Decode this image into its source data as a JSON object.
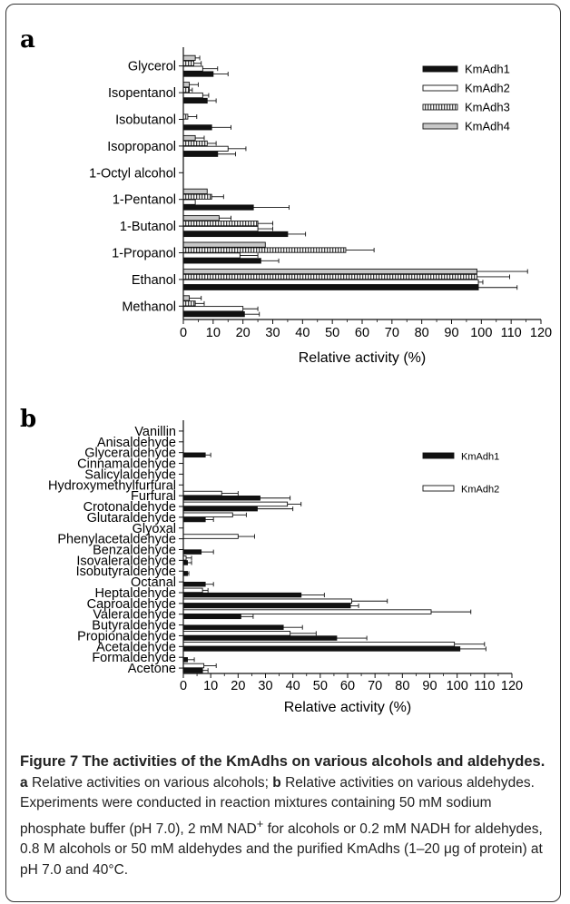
{
  "chart_data": [
    {
      "panel": "a",
      "type": "bar",
      "orientation": "horizontal",
      "categories": [
        "Glycerol",
        "Isopentanol",
        "Isobutanol",
        "Isopropanol",
        "1-Octyl alcohol",
        "1-Pentanol",
        "1-Butanol",
        "1-Propanol",
        "Ethanol",
        "Methanol"
      ],
      "series": [
        {
          "name": "KmAdh1",
          "values": [
            10,
            8,
            9.5,
            11.5,
            0,
            23.5,
            35,
            26,
            99,
            20.5
          ],
          "errors": [
            5,
            3,
            6.5,
            6,
            0,
            12,
            6,
            6,
            13,
            5
          ]
        },
        {
          "name": "KmAdh2",
          "values": [
            6.5,
            6.5,
            0,
            15,
            0,
            4,
            25,
            19,
            99,
            20
          ],
          "errors": [
            5,
            2,
            0,
            6,
            0,
            0,
            5,
            6,
            1.5,
            5
          ]
        },
        {
          "name": "KmAdh3",
          "values": [
            3.5,
            2,
            1.5,
            8,
            0,
            9.5,
            25,
            54.5,
            98.5,
            4
          ],
          "errors": [
            2.5,
            1,
            3,
            3,
            0,
            4,
            5,
            9.5,
            11,
            3
          ]
        },
        {
          "name": "KmAdh4",
          "values": [
            4,
            2,
            0,
            4,
            0,
            8,
            12,
            27.5,
            98.5,
            2
          ],
          "errors": [
            1.5,
            3,
            0,
            3,
            0,
            0,
            4,
            0,
            17,
            4
          ]
        }
      ],
      "xlabel": "Relative activity (%)",
      "xlim": [
        0,
        120
      ],
      "xticks": [
        "0",
        "10",
        "20",
        "30",
        "40",
        "50",
        "60",
        "70",
        "80",
        "90",
        "100",
        "110",
        "120"
      ],
      "legend": "top-right",
      "series_styles": [
        "black",
        "white",
        "vertical-stripes",
        "light-gray"
      ]
    },
    {
      "panel": "b",
      "type": "bar",
      "orientation": "horizontal",
      "categories": [
        "Vanillin",
        "Anisaldehyde",
        "Glyceraldehyde",
        "Cinnamaldehyde",
        "Salicylaldehyde",
        "Hydroxymethylfurfural",
        "Furfural",
        "Crotonaldehyde",
        "Glutaraldehyde",
        "Glyoxal",
        "Phenylacetaldehyde",
        "Benzaldehyde",
        "Isovaleraldehyde",
        "Isobutyraldehyde",
        "Octanal",
        "Heptaldehyde",
        "Caproaldehyde",
        "Valeraldehyde",
        "Butyraldehyde",
        "Propionaldehyde",
        "Acetaldehyde",
        "Formaldehyde",
        "Acetone"
      ],
      "series": [
        {
          "name": "KmAdh1",
          "values": [
            0,
            0,
            8,
            0,
            0,
            0,
            28,
            27,
            8,
            0,
            0,
            6.5,
            1.5,
            1.5,
            8,
            43,
            61,
            21,
            36.5,
            56,
            101,
            1.5,
            7
          ],
          "errors": [
            0,
            0,
            2,
            0,
            0,
            0,
            11,
            13,
            3,
            0,
            0,
            4.5,
            1.5,
            0.5,
            3,
            8.5,
            3,
            4.5,
            7,
            11,
            9.5,
            2.5,
            2
          ]
        },
        {
          "name": "KmAdh2",
          "values": [
            0,
            0,
            0,
            0,
            0,
            0,
            14,
            38,
            18,
            0,
            20,
            0,
            1,
            0,
            0,
            7,
            61.5,
            90.5,
            0,
            39,
            99,
            0,
            7.5
          ],
          "errors": [
            0,
            0,
            0,
            0,
            0,
            0,
            6,
            5,
            5,
            0,
            6,
            0,
            2,
            0,
            0,
            2,
            13,
            14.5,
            0,
            9.5,
            11,
            0,
            4.5
          ]
        }
      ],
      "xlabel": "Relative activity (%)",
      "xlim": [
        0,
        120
      ],
      "xticks": [
        "0",
        "10",
        "20",
        "30",
        "40",
        "50",
        "60",
        "70",
        "80",
        "90",
        "100",
        "110",
        "120"
      ],
      "legend": "top-right",
      "series_styles": [
        "black",
        "white"
      ]
    }
  ],
  "panel_labels": {
    "a": "a",
    "b": "b"
  },
  "legend_a": [
    "KmAdh1",
    "KmAdh2",
    "KmAdh3",
    "KmAdh4"
  ],
  "legend_b": [
    "KmAdh1",
    "KmAdh2"
  ],
  "caption": {
    "figure_label": "Figure 7",
    "title": "The activities of the KmAdhs on various alcohols and aldehydes.",
    "part_a_label": "a",
    "part_a_text": "Relative activities on various alcohols;",
    "part_b_label": "b",
    "part_b_text": "Relative activities on various aldehydes. Experiments were conducted in reaction mixtures containing 50 mM sodium phosphate buffer (pH 7.0), 2 mM NAD",
    "superscript": "+",
    "rest_text": " for alcohols or 0.2 mM NADH for aldehydes, 0.8 M alcohols or 50 mM aldehydes and the purified KmAdhs (1–20 μg of protein) at pH 7.0 and 40°C."
  },
  "colors": {
    "black": "#111111",
    "white": "#ffffff",
    "stripe": "#444444",
    "gray": "#c8c8c8",
    "frame": "#333333"
  }
}
